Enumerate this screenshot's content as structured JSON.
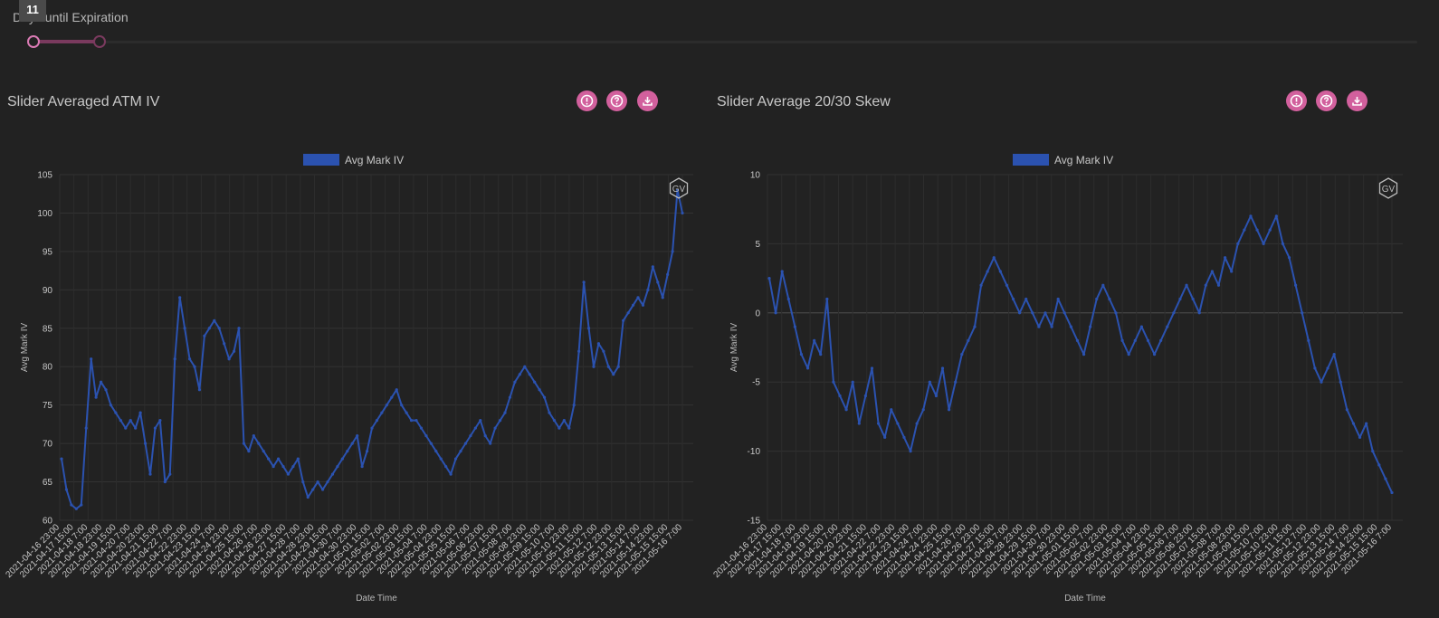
{
  "slider": {
    "label": "Days until Expiration",
    "tooltip": "11",
    "value_low": 11
  },
  "panels": [
    {
      "title": "Slider Averaged ATM IV",
      "buttons": [
        "info-icon",
        "help-icon",
        "download-icon"
      ],
      "watermark": "GV"
    },
    {
      "title": "Slider Average 20/30 Skew",
      "buttons": [
        "info-icon",
        "help-icon",
        "download-icon"
      ],
      "watermark": "GV"
    }
  ],
  "colors": {
    "accent": "#d2609d",
    "series": "#2b52b0"
  },
  "chart_data": [
    {
      "type": "line",
      "legend": "Avg Mark IV",
      "xlabel": "Date Time",
      "ylabel": "Avg Mark IV",
      "ylim": [
        60,
        105
      ],
      "yticks": [
        60,
        65,
        70,
        75,
        80,
        85,
        90,
        95,
        100,
        105
      ],
      "xticks": [
        "2021-04-16 23:00",
        "2021-04-17 15:00",
        "2021-04-18 7:00",
        "2021-04-18 23:00",
        "2021-04-19 15:00",
        "2021-04-20 7:00",
        "2021-04-20 23:00",
        "2021-04-21 15:00",
        "2021-04-22 7:00",
        "2021-04-22 23:00",
        "2021-04-23 15:00",
        "2021-04-24 7:00",
        "2021-04-24 23:00",
        "2021-04-25 15:00",
        "2021-04-26 7:00",
        "2021-04-26 23:00",
        "2021-04-27 15:00",
        "2021-04-28 7:00",
        "2021-04-28 23:00",
        "2021-04-29 15:00",
        "2021-04-30 7:00",
        "2021-04-30 23:00",
        "2021-05-01 15:00",
        "2021-05-02 7:00",
        "2021-05-02 23:00",
        "2021-05-03 15:00",
        "2021-05-04 7:00",
        "2021-05-04 23:00",
        "2021-05-05 15:00",
        "2021-05-06 7:00",
        "2021-05-06 23:00",
        "2021-05-07 15:00",
        "2021-05-08 7:00",
        "2021-05-08 23:00",
        "2021-05-09 15:00",
        "2021-05-10 7:00",
        "2021-05-10 23:00",
        "2021-05-11 15:00",
        "2021-05-12 7:00",
        "2021-05-12 23:00",
        "2021-05-13 15:00",
        "2021-05-14 7:00",
        "2021-05-14 23:00",
        "2021-05-15 15:00",
        "2021-05-16 7:00"
      ],
      "y": [
        68,
        64,
        62,
        61.5,
        62,
        72,
        81,
        76,
        78,
        77,
        75,
        74,
        73,
        72,
        73,
        72,
        74,
        70,
        66,
        72,
        73,
        65,
        66,
        81,
        89,
        85,
        81,
        80,
        77,
        84,
        85,
        86,
        85,
        83,
        81,
        82,
        85,
        70,
        69,
        71,
        70,
        69,
        68,
        67,
        68,
        67,
        66,
        67,
        68,
        65,
        63,
        64,
        65,
        64,
        65,
        66,
        67,
        68,
        69,
        70,
        71,
        67,
        69,
        72,
        73,
        74,
        75,
        76,
        77,
        75,
        74,
        73,
        73,
        72,
        71,
        70,
        69,
        68,
        67,
        66,
        68,
        69,
        70,
        71,
        72,
        73,
        71,
        70,
        72,
        73,
        74,
        76,
        78,
        79,
        80,
        79,
        78,
        77,
        76,
        74,
        73,
        72,
        73,
        72,
        75,
        82,
        91,
        85,
        80,
        83,
        82,
        80,
        79,
        80,
        86,
        87,
        88,
        89,
        88,
        90,
        93,
        91,
        89,
        92,
        95,
        103,
        100
      ]
    },
    {
      "type": "line",
      "legend": "Avg Mark IV",
      "xlabel": "Date Time",
      "ylabel": "Avg Mark IV",
      "ylim": [
        -15,
        10
      ],
      "yticks": [
        -15,
        -10,
        -5,
        0,
        5,
        10
      ],
      "xticks": [
        "2021-04-16 23:00",
        "2021-04-17 15:00",
        "2021-04-18 7:00",
        "2021-04-18 23:00",
        "2021-04-19 15:00",
        "2021-04-20 7:00",
        "2021-04-20 23:00",
        "2021-04-21 15:00",
        "2021-04-22 7:00",
        "2021-04-22 23:00",
        "2021-04-23 15:00",
        "2021-04-24 7:00",
        "2021-04-24 23:00",
        "2021-04-25 15:00",
        "2021-04-26 7:00",
        "2021-04-26 23:00",
        "2021-04-27 15:00",
        "2021-04-28 7:00",
        "2021-04-28 23:00",
        "2021-04-29 15:00",
        "2021-04-30 7:00",
        "2021-04-30 23:00",
        "2021-05-01 15:00",
        "2021-05-02 7:00",
        "2021-05-02 23:00",
        "2021-05-03 15:00",
        "2021-05-04 7:00",
        "2021-05-04 23:00",
        "2021-05-05 15:00",
        "2021-05-06 7:00",
        "2021-05-06 23:00",
        "2021-05-07 15:00",
        "2021-05-08 7:00",
        "2021-05-08 23:00",
        "2021-05-09 15:00",
        "2021-05-10 7:00",
        "2021-05-10 23:00",
        "2021-05-11 15:00",
        "2021-05-12 7:00",
        "2021-05-12 23:00",
        "2021-05-13 15:00",
        "2021-05-14 7:00",
        "2021-05-14 23:00",
        "2021-05-15 15:00",
        "2021-05-16 7:00"
      ],
      "y": [
        2.5,
        0,
        3,
        1,
        -1,
        -3,
        -4,
        -2,
        -3,
        1,
        -5,
        -6,
        -7,
        -5,
        -8,
        -6,
        -4,
        -8,
        -9,
        -7,
        -8,
        -9,
        -10,
        -8,
        -7,
        -5,
        -6,
        -4,
        -7,
        -5,
        -3,
        -2,
        -1,
        2,
        3,
        4,
        3,
        2,
        1,
        0,
        1,
        0,
        -1,
        0,
        -1,
        1,
        0,
        -1,
        -2,
        -3,
        -1,
        1,
        2,
        1,
        0,
        -2,
        -3,
        -2,
        -1,
        -2,
        -3,
        -2,
        -1,
        0,
        1,
        2,
        1,
        0,
        2,
        3,
        2,
        4,
        3,
        5,
        6,
        7,
        6,
        5,
        6,
        7,
        5,
        4,
        2,
        0,
        -2,
        -4,
        -5,
        -4,
        -3,
        -5,
        -7,
        -8,
        -9,
        -8,
        -10,
        -11,
        -12,
        -13
      ]
    }
  ]
}
